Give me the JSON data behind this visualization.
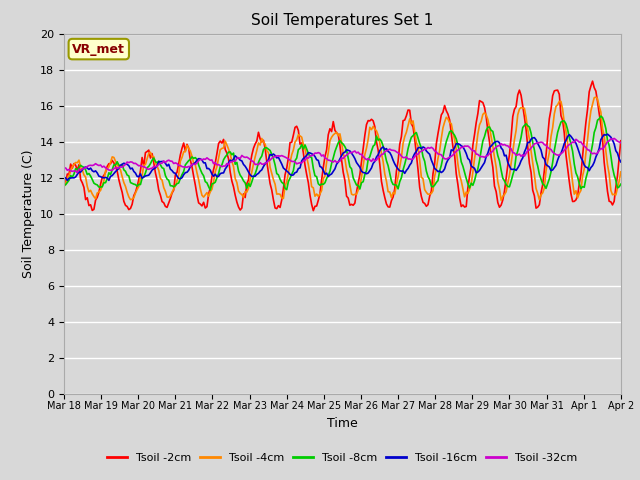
{
  "title": "Soil Temperatures Set 1",
  "xlabel": "Time",
  "ylabel": "Soil Temperature (C)",
  "ylim": [
    0,
    20
  ],
  "yticks": [
    0,
    2,
    4,
    6,
    8,
    10,
    12,
    14,
    16,
    18,
    20
  ],
  "background_color": "#d8d8d8",
  "plot_bg_color": "#d8d8d8",
  "grid_color": "#ffffff",
  "annotation_text": "VR_met",
  "annotation_bg": "#ffffcc",
  "annotation_border": "#999900",
  "annotation_text_color": "#880000",
  "series_colors": [
    "#ff0000",
    "#ff8800",
    "#00cc00",
    "#0000cc",
    "#cc00cc"
  ],
  "series_labels": [
    "Tsoil -2cm",
    "Tsoil -4cm",
    "Tsoil -8cm",
    "Tsoil -16cm",
    "Tsoil -32cm"
  ],
  "x_tick_labels": [
    "Mar 18",
    "Mar 19",
    "Mar 20",
    "Mar 21",
    "Mar 22",
    "Mar 23",
    "Mar 24",
    "Mar 25",
    "Mar 26",
    "Mar 27",
    "Mar 28",
    "Mar 29",
    "Mar 30",
    "Mar 31",
    "Apr 1",
    "Apr 2"
  ],
  "n_points": 336,
  "end_day": 15,
  "linewidth": 1.2
}
